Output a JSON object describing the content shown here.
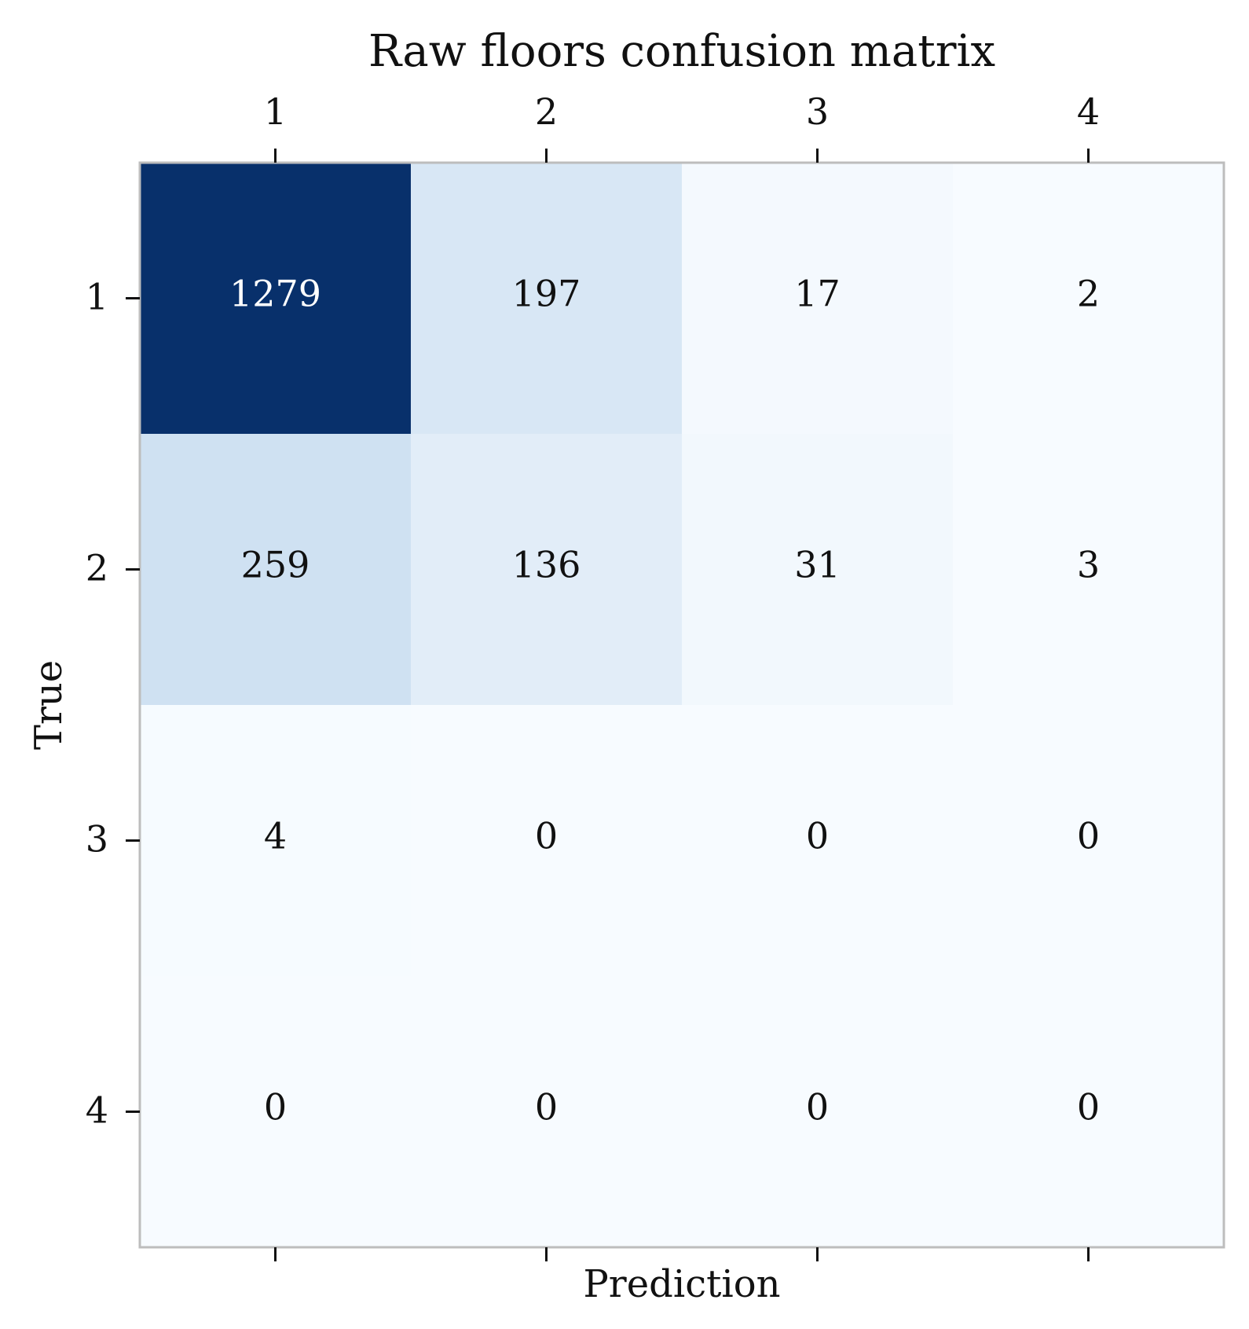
{
  "chart_data": {
    "type": "heatmap",
    "title": "Raw floors confusion matrix",
    "xlabel": "Prediction",
    "ylabel": "True",
    "x_categories": [
      "1",
      "2",
      "3",
      "4"
    ],
    "y_categories": [
      "1",
      "2",
      "3",
      "4"
    ],
    "values": [
      [
        1279,
        197,
        17,
        2
      ],
      [
        259,
        136,
        31,
        3
      ],
      [
        4,
        0,
        0,
        0
      ],
      [
        0,
        0,
        0,
        0
      ]
    ],
    "colormap": "Blues",
    "x_tick_position": "top",
    "grid": false,
    "colors": {
      "low": "#f7fbff",
      "high": "#08306b",
      "text_dark": "#111111",
      "text_light": "#ffffff",
      "frame": "#bdbdbd"
    }
  }
}
